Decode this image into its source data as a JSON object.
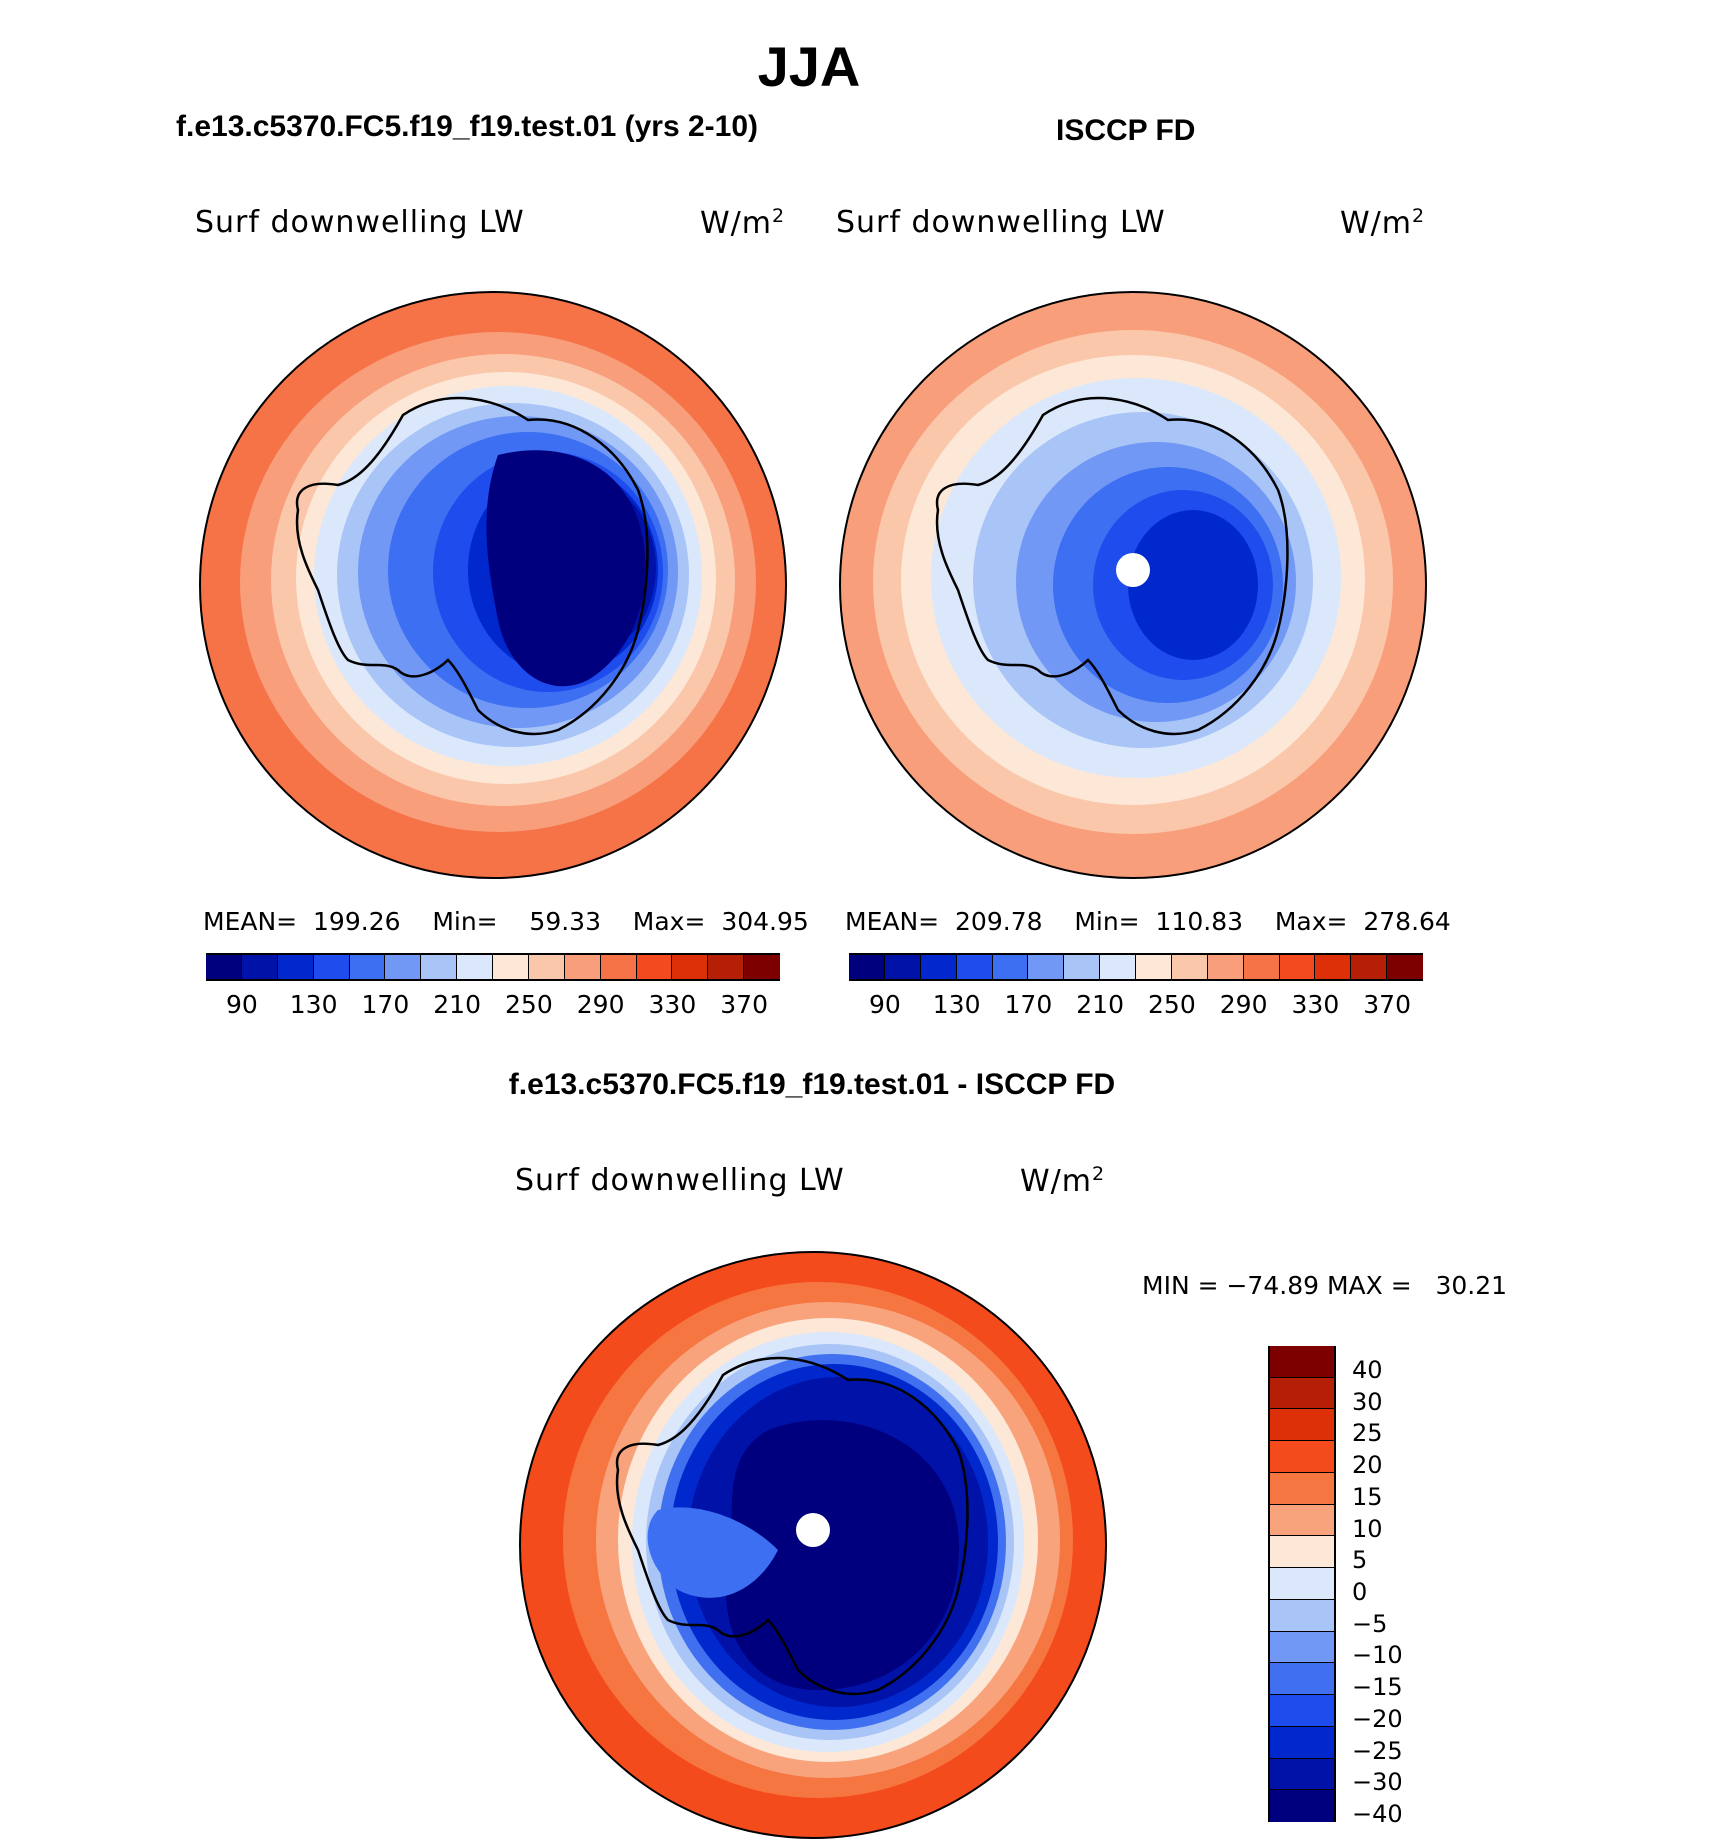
{
  "figure": {
    "title": "JJA",
    "diff_title": "f.e13.c5370.FC5.f19_f19.test.01 - ISCCP FD"
  },
  "panels": [
    {
      "case": "f.e13.c5370.FC5.f19_f19.test.01 (yrs 2-10)",
      "variable": "Surf downwelling LW",
      "units_text": "W/m",
      "units_sup": "2",
      "stats": {
        "mean_label": "MEAN=",
        "mean": "199.26",
        "min_label": "Min=",
        "min": "59.33",
        "max_label": "Max=",
        "max": "304.95"
      }
    },
    {
      "case": "ISCCP FD",
      "variable": "Surf downwelling LW",
      "units_text": "W/m",
      "units_sup": "2",
      "stats": {
        "mean_label": "MEAN=",
        "mean": "209.78",
        "min_label": "Min=",
        "min": "110.83",
        "max_label": "Max=",
        "max": "278.64"
      }
    },
    {
      "variable": "Surf downwelling LW",
      "units_text": "W/m",
      "units_sup": "2",
      "stats_text": "MIN = −74.89 MAX =   30.21"
    }
  ],
  "colorbar_main": {
    "colors": [
      "#00007f",
      "#0012a8",
      "#0028cc",
      "#1e4ced",
      "#3d6ff2",
      "#7198f5",
      "#a9c4f7",
      "#dbe8fb",
      "#fde7d7",
      "#fbc7ab",
      "#f89e7b",
      "#f57347",
      "#f34b1f",
      "#dd2f08",
      "#b41f05",
      "#7c0000"
    ],
    "labels": [
      "90",
      "130",
      "170",
      "210",
      "250",
      "290",
      "330",
      "370"
    ]
  },
  "colorbar_diff": {
    "colors": [
      "#7c0000",
      "#b41f05",
      "#dd3008",
      "#f44b1d",
      "#f67642",
      "#f9a37d",
      "#fde7d7",
      "#dbe8fb",
      "#a9c4f7",
      "#7198f5",
      "#4070f0",
      "#1e4ced",
      "#0028cc",
      "#0012a8",
      "#00007f"
    ],
    "labels": [
      "40",
      "30",
      "25",
      "20",
      "15",
      "10",
      "5",
      "0",
      "−5",
      "−10",
      "−15",
      "−20",
      "−25",
      "−30",
      "−40"
    ]
  },
  "colors": {
    "continent_outline": "#000000",
    "pole_hole": "#ffffff"
  }
}
